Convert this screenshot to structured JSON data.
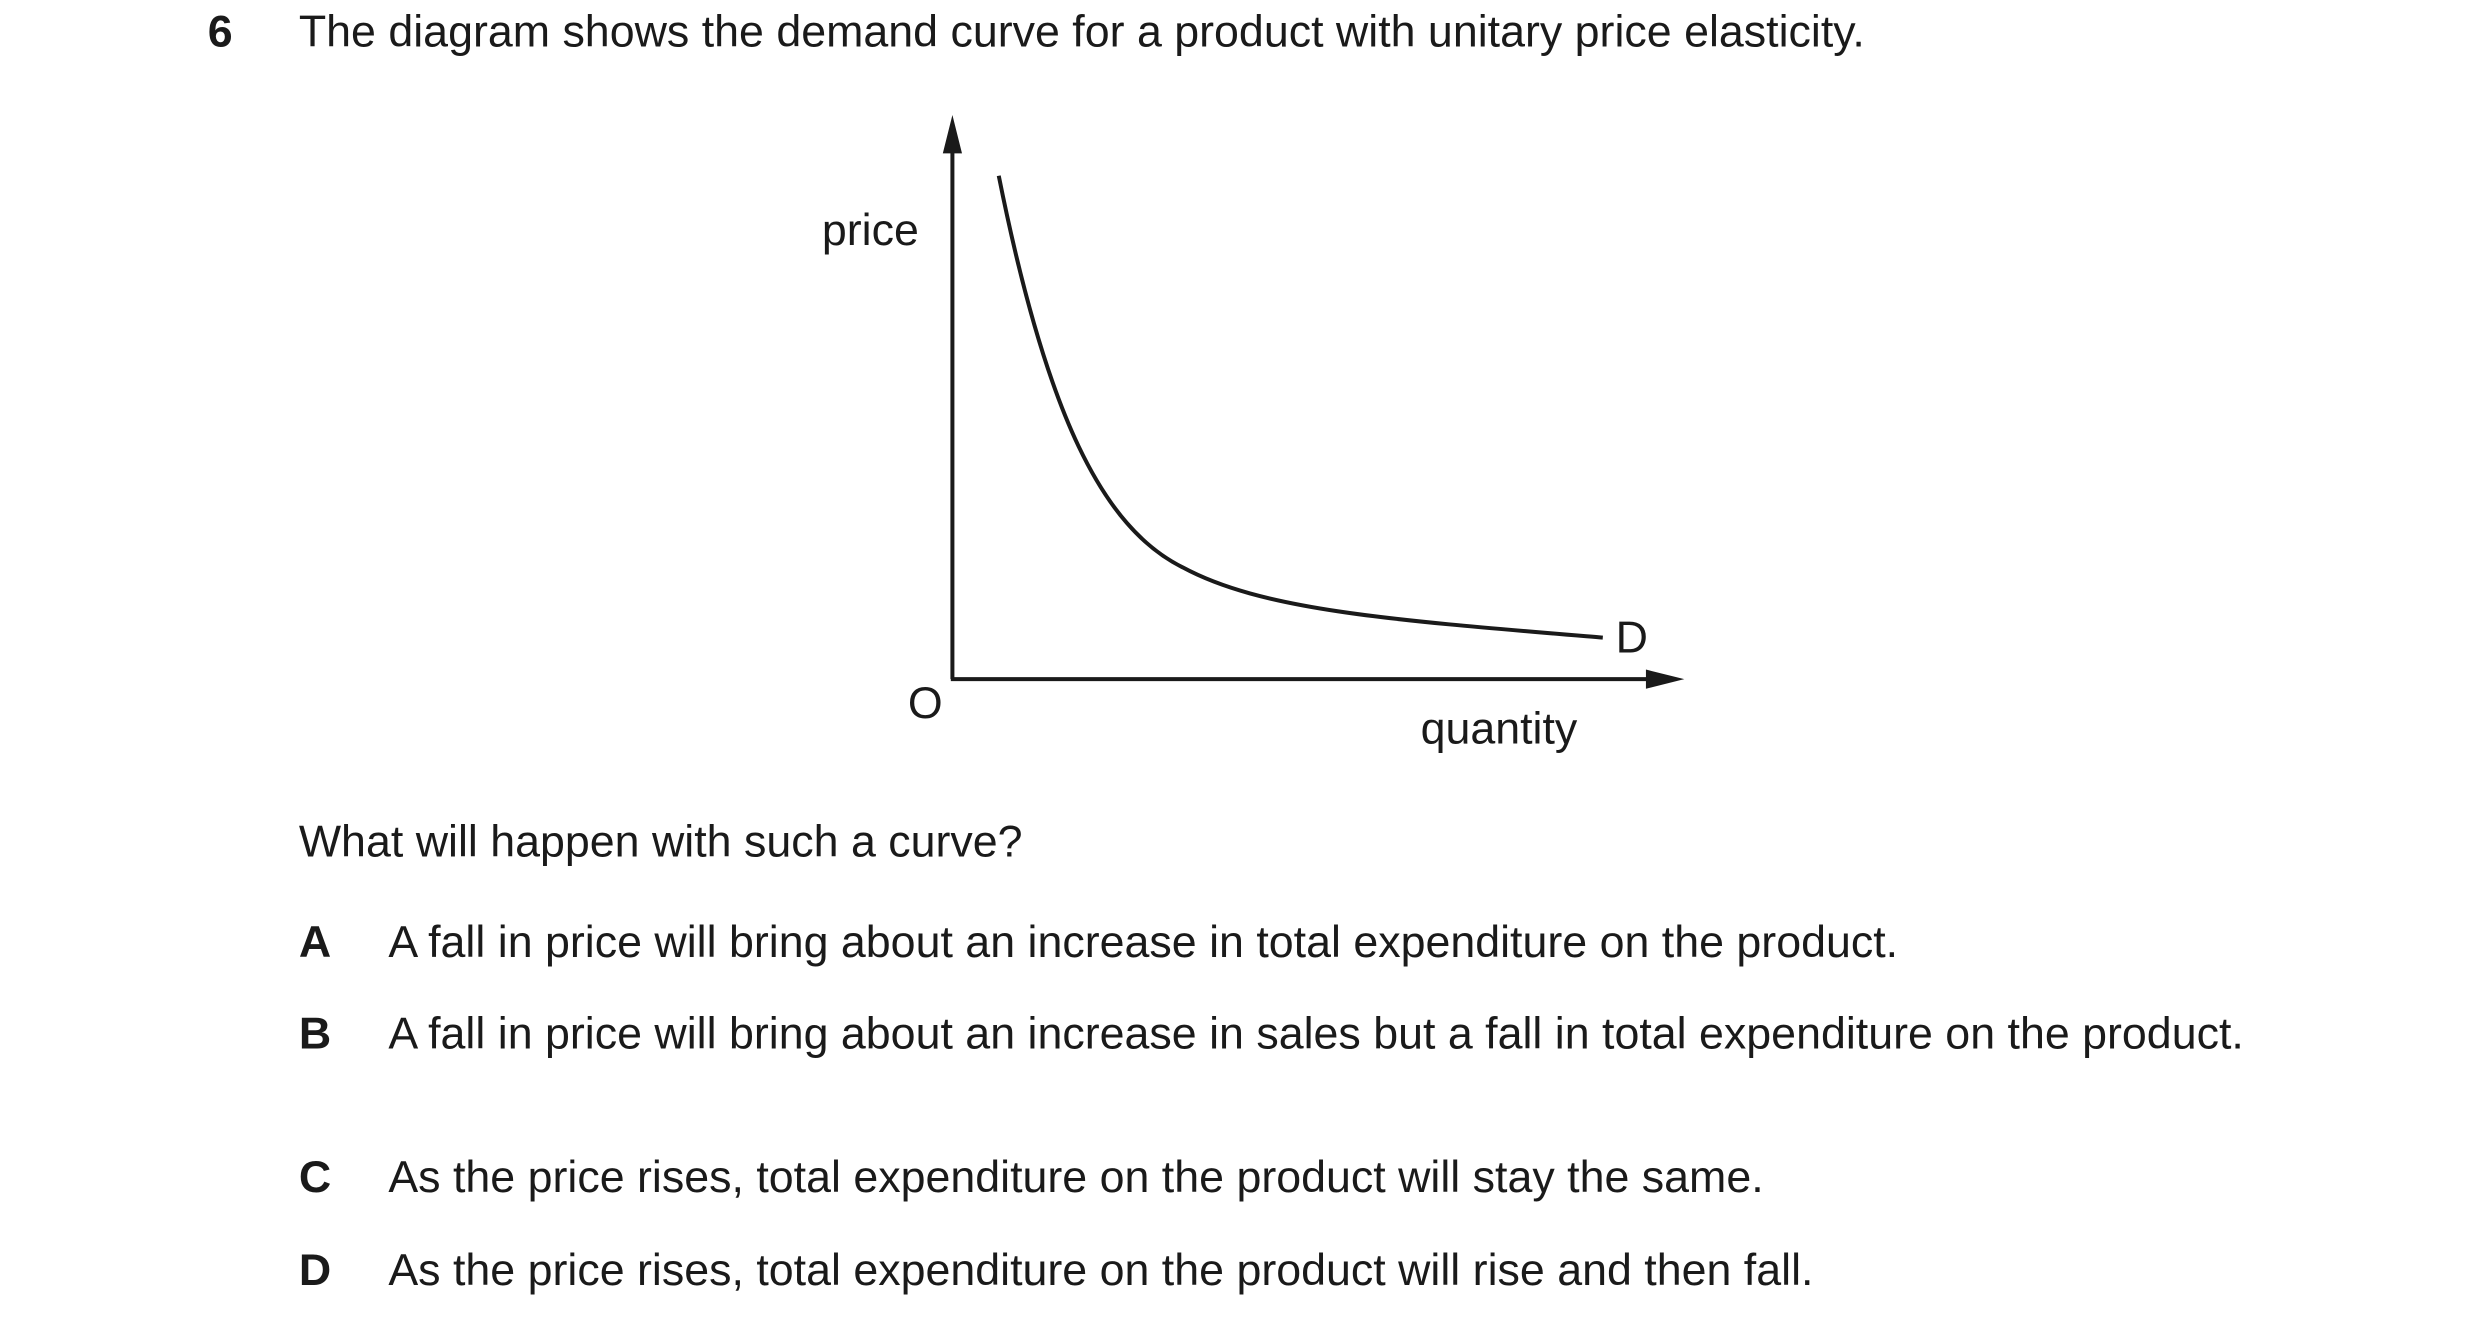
{
  "question": {
    "number": "6",
    "stem": "The diagram shows the demand curve for a product with unitary price elasticity."
  },
  "diagram": {
    "y_axis_label": "price",
    "x_axis_label": "quantity",
    "origin_label": "O",
    "curve_label": "D"
  },
  "prompt": "What will happen with such a curve?",
  "options": [
    {
      "letter": "A",
      "text": "A fall in price will bring about an increase in total expenditure on the product."
    },
    {
      "letter": "B",
      "text": "A fall in price will bring about an increase in sales but a fall in total expenditure on the product."
    },
    {
      "letter": "C",
      "text": "As the price rises, total expenditure on the product will stay the same."
    },
    {
      "letter": "D",
      "text": "As the price rises, total expenditure on the product will rise and then fall."
    }
  ]
}
